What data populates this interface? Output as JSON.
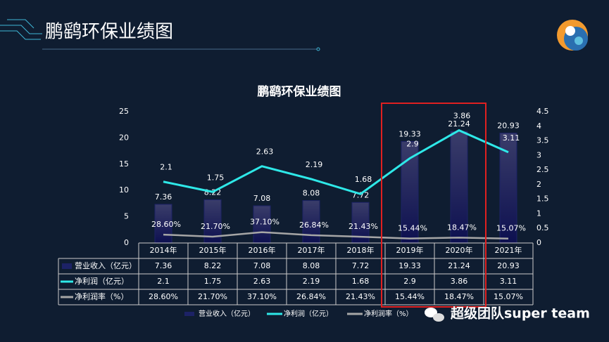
{
  "header": {
    "title": "鹏鹞环保业绩图"
  },
  "chart_data": {
    "type": "bar-line",
    "title": "鹏鹞环保业绩图",
    "categories": [
      "2014年",
      "2015年",
      "2016年",
      "2017年",
      "2018年",
      "2019年",
      "2020年",
      "2021年"
    ],
    "series": [
      {
        "name": "营业收入（亿元）",
        "type": "bar",
        "color": "#1c2266",
        "values": [
          7.36,
          8.22,
          7.08,
          8.08,
          7.72,
          19.33,
          21.24,
          20.93
        ]
      },
      {
        "name": "净利润（亿元）",
        "type": "line",
        "axis": "y2",
        "color": "#2ee8e8",
        "values": [
          2.1,
          1.75,
          2.63,
          2.19,
          1.68,
          2.9,
          3.86,
          3.11
        ]
      },
      {
        "name": "净利润率（%）",
        "type": "line",
        "axis": "y2",
        "color": "#a6a6a6",
        "values": [
          0.286,
          0.217,
          0.371,
          0.2684,
          0.2143,
          0.1544,
          0.1847,
          0.1507
        ],
        "value_labels": [
          "28.60%",
          "21.70%",
          "37.10%",
          "26.84%",
          "21.43%",
          "15.44%",
          "18.47%",
          "15.07%"
        ]
      }
    ],
    "ylim": [
      0,
      25
    ],
    "yticks": [
      0,
      5,
      10,
      15,
      20,
      25
    ],
    "y2lim": [
      0,
      4.5
    ],
    "y2ticks": [
      0,
      0.5,
      1,
      1.5,
      2,
      2.5,
      3,
      3.5,
      4,
      4.5
    ]
  },
  "footer": {
    "brand": "超级团队super team"
  }
}
